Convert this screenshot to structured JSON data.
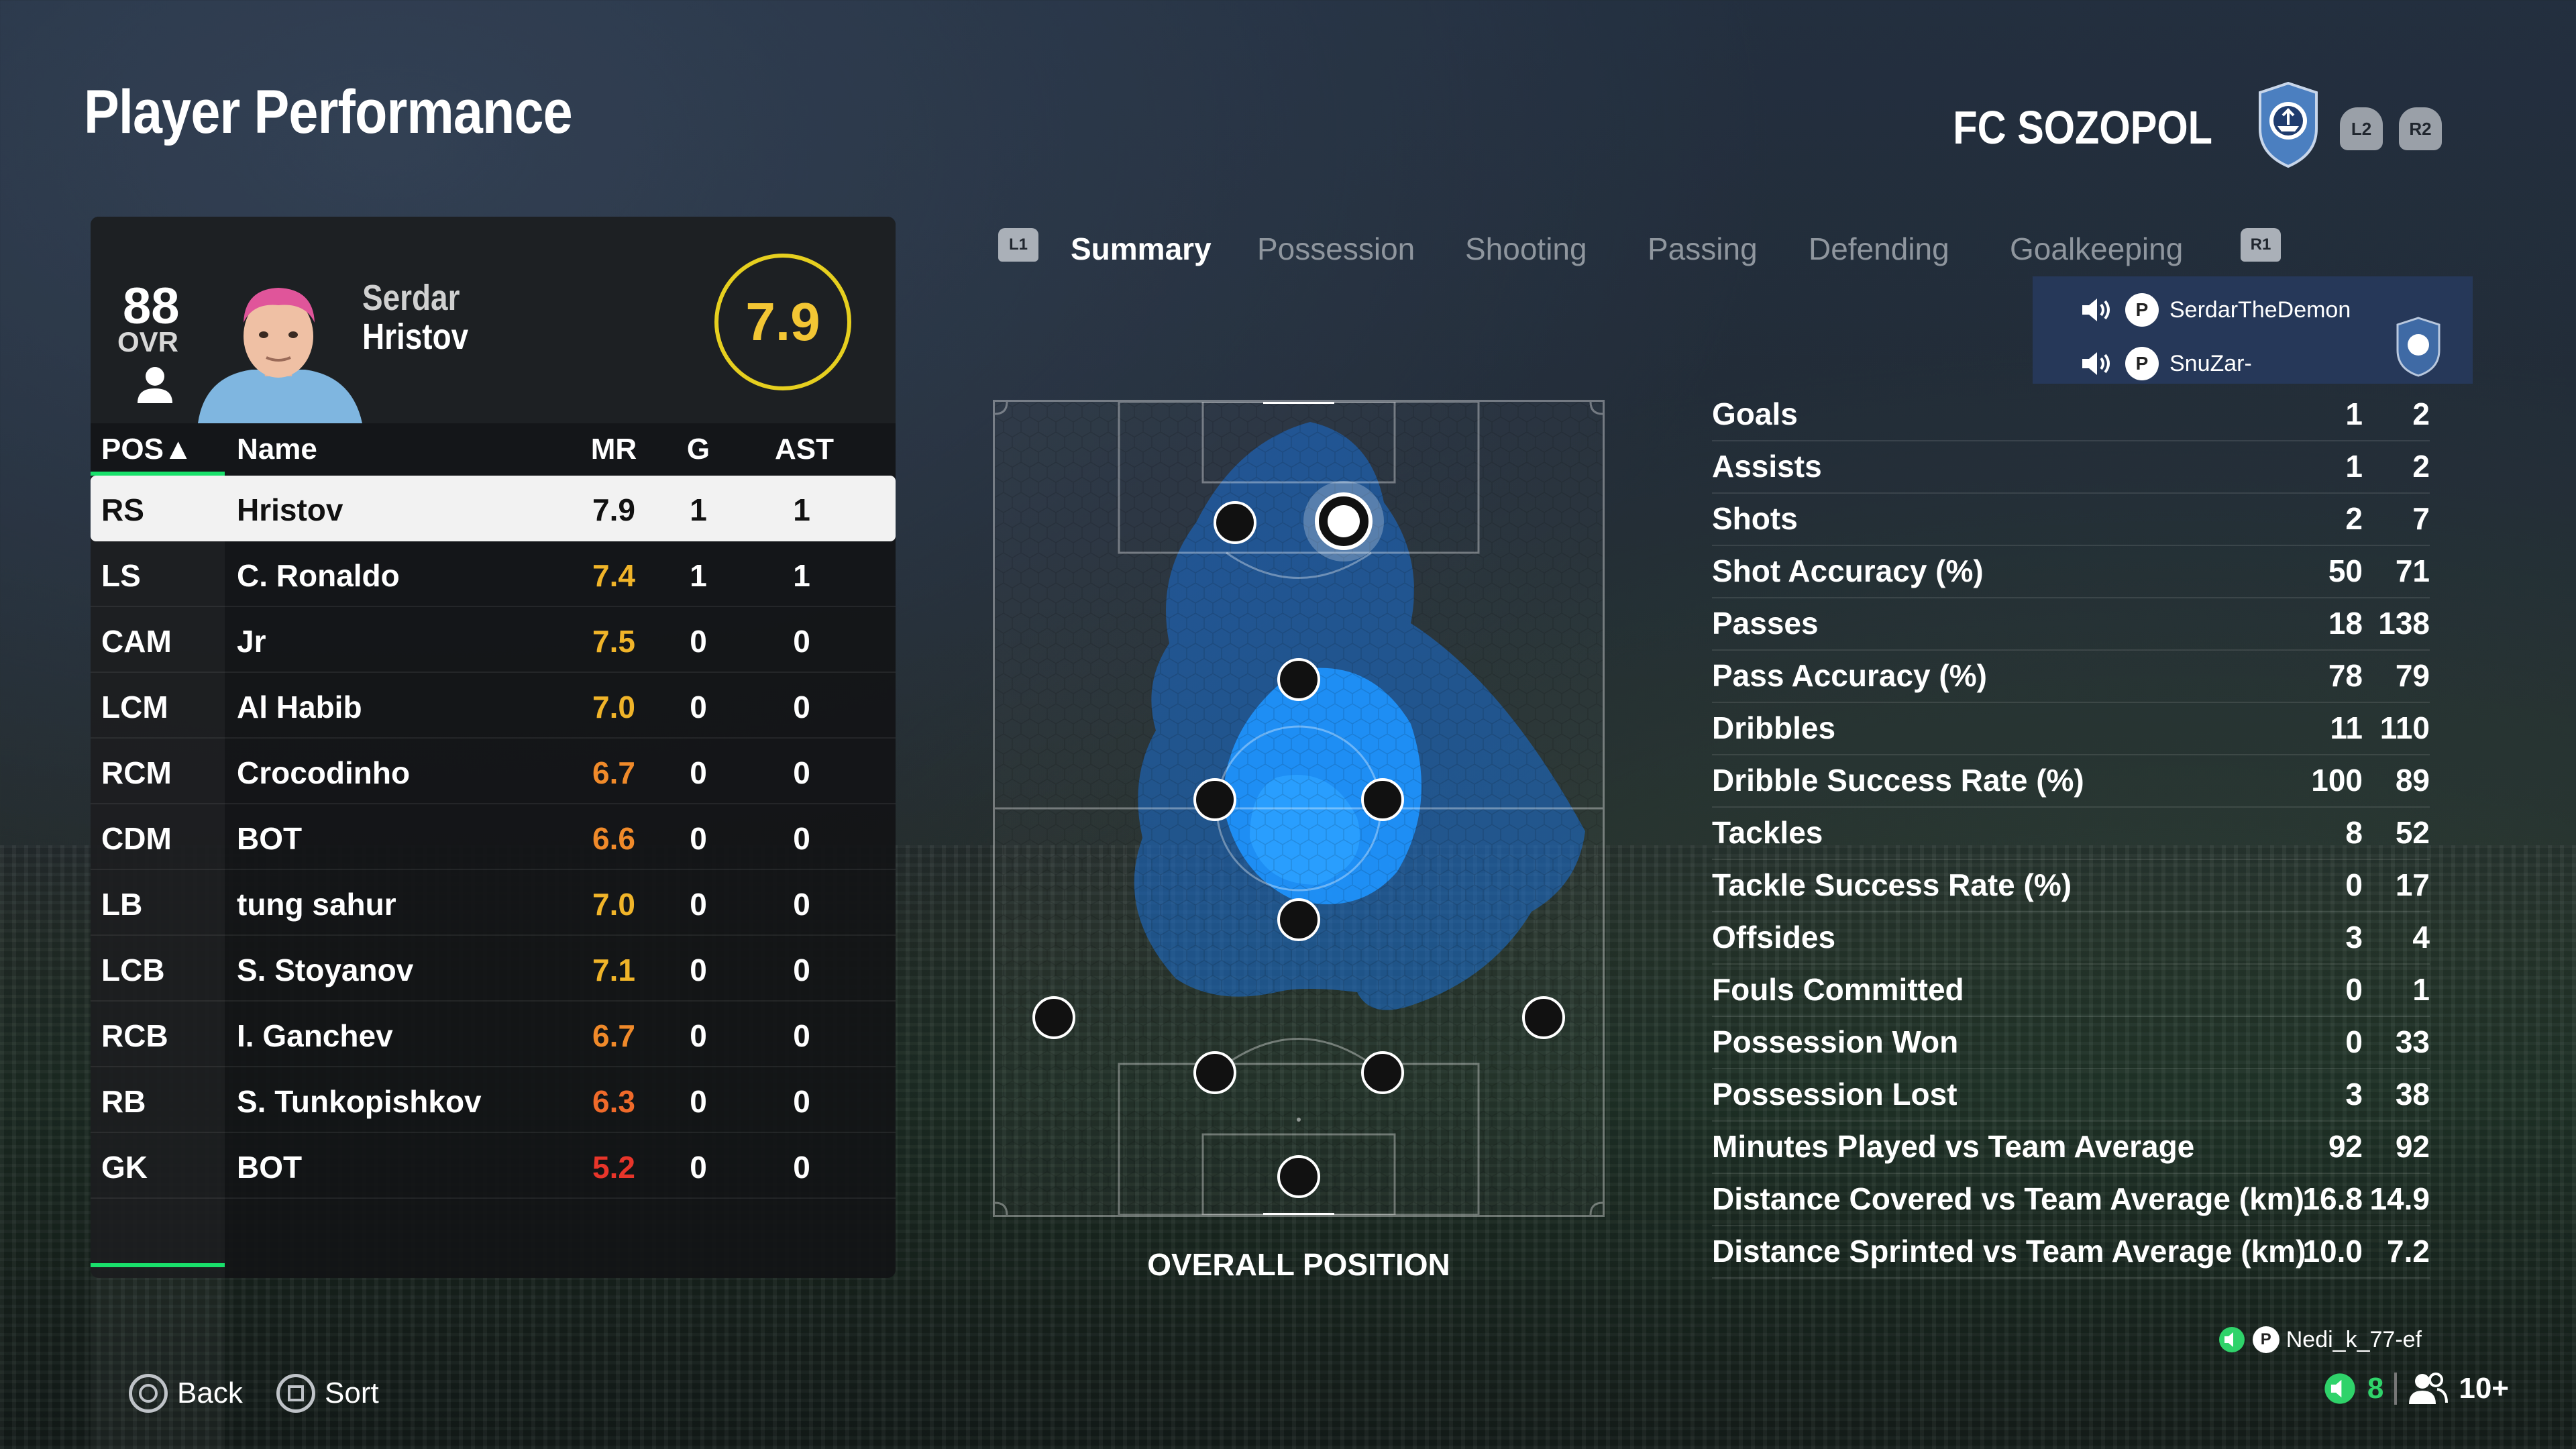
{
  "header": {
    "title": "Player Performance",
    "club_name": "FC SOZOPOL",
    "l2": "L2",
    "r2": "R2"
  },
  "player": {
    "ovr": "88",
    "ovr_label": "OVR",
    "first_name": "Serdar",
    "last_name": "Hristov",
    "rating": "7.9"
  },
  "table": {
    "headers": {
      "pos": "POS▲",
      "name": "Name",
      "mr": "MR",
      "g": "G",
      "ast": "AST"
    },
    "rows": [
      {
        "pos": "RS",
        "name": "Hristov",
        "mr": "7.9",
        "g": "1",
        "ast": "1",
        "mr_color": "#111111"
      },
      {
        "pos": "LS",
        "name": "C. Ronaldo",
        "mr": "7.4",
        "g": "1",
        "ast": "1",
        "mr_color": "#f0b429"
      },
      {
        "pos": "CAM",
        "name": "Jr",
        "mr": "7.5",
        "g": "0",
        "ast": "0",
        "mr_color": "#f0b429"
      },
      {
        "pos": "LCM",
        "name": "Al Habib",
        "mr": "7.0",
        "g": "0",
        "ast": "0",
        "mr_color": "#f0b429"
      },
      {
        "pos": "RCM",
        "name": "Crocodinho",
        "mr": "6.7",
        "g": "0",
        "ast": "0",
        "mr_color": "#f08a2a"
      },
      {
        "pos": "CDM",
        "name": "BOT",
        "mr": "6.6",
        "g": "0",
        "ast": "0",
        "mr_color": "#f08a2a"
      },
      {
        "pos": "LB",
        "name": "tung sahur",
        "mr": "7.0",
        "g": "0",
        "ast": "0",
        "mr_color": "#f0b429"
      },
      {
        "pos": "LCB",
        "name": "S. Stoyanov",
        "mr": "7.1",
        "g": "0",
        "ast": "0",
        "mr_color": "#f0b429"
      },
      {
        "pos": "RCB",
        "name": "I. Ganchev",
        "mr": "6.7",
        "g": "0",
        "ast": "0",
        "mr_color": "#f08a2a"
      },
      {
        "pos": "RB",
        "name": "S. Tunkopishkov",
        "mr": "6.3",
        "g": "0",
        "ast": "0",
        "mr_color": "#f06a2a"
      },
      {
        "pos": "GK",
        "name": "BOT",
        "mr": "5.2",
        "g": "0",
        "ast": "0",
        "mr_color": "#e8352a"
      }
    ]
  },
  "tabs": {
    "l1": "L1",
    "r1": "R1",
    "items": [
      "Summary",
      "Possession",
      "Shooting",
      "Passing",
      "Defending",
      "Goalkeeping"
    ],
    "active": "Summary"
  },
  "players_box": {
    "user1": "SerdarTheDemon",
    "user2": "SnuZar-"
  },
  "pitch": {
    "caption": "OVERALL POSITION"
  },
  "stats": [
    {
      "label": "Goals",
      "v1": "1",
      "v2": "2"
    },
    {
      "label": "Assists",
      "v1": "1",
      "v2": "2"
    },
    {
      "label": "Shots",
      "v1": "2",
      "v2": "7"
    },
    {
      "label": "Shot Accuracy (%)",
      "v1": "50",
      "v2": "71"
    },
    {
      "label": "Passes",
      "v1": "18",
      "v2": "138"
    },
    {
      "label": "Pass Accuracy (%)",
      "v1": "78",
      "v2": "79"
    },
    {
      "label": "Dribbles",
      "v1": "11",
      "v2": "110"
    },
    {
      "label": "Dribble Success Rate (%)",
      "v1": "100",
      "v2": "89"
    },
    {
      "label": "Tackles",
      "v1": "8",
      "v2": "52"
    },
    {
      "label": "Tackle Success Rate (%)",
      "v1": "0",
      "v2": "17"
    },
    {
      "label": "Offsides",
      "v1": "3",
      "v2": "4"
    },
    {
      "label": "Fouls Committed",
      "v1": "0",
      "v2": "1"
    },
    {
      "label": "Possession Won",
      "v1": "0",
      "v2": "33"
    },
    {
      "label": "Possession Lost",
      "v1": "3",
      "v2": "38"
    },
    {
      "label": "Minutes Played vs Team Average",
      "v1": "92",
      "v2": "92"
    },
    {
      "label": "Distance Covered vs Team Average (km)",
      "v1": "16.8",
      "v2": "14.9"
    },
    {
      "label": "Distance Sprinted vs Team Average (km)",
      "v1": "10.0",
      "v2": "7.2"
    }
  ],
  "footer": {
    "back_label": "Back",
    "sort_label": "Sort",
    "online_user": "Nedi_k_77-ef",
    "voice_count": "8",
    "party_count": "10+"
  },
  "colors": {
    "accent_green": "#19e06b",
    "rating_ring": "#e6cf1f",
    "heatmap": "#1e90ff"
  }
}
